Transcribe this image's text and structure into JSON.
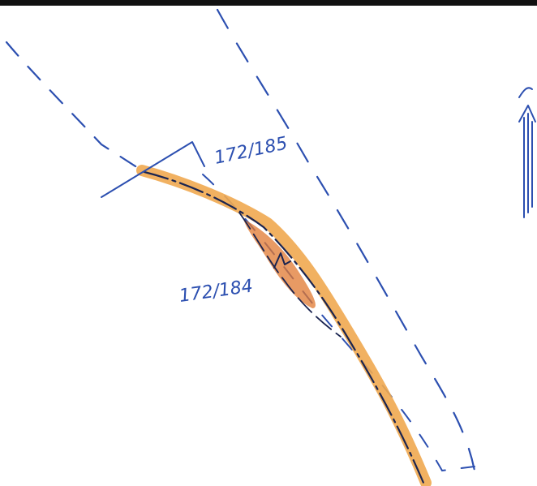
{
  "labels": {
    "parcel_upper": "172/185",
    "parcel_lower": "172/184"
  },
  "icons": {
    "north_arrow": "north-arrow-icon"
  },
  "colors": {
    "ink_blue": "#2c4fb0",
    "ink_dark": "#1a2450",
    "highlight_orange": "#f0a850",
    "highlight_dark_orange": "#e07830",
    "frame_black": "#111111"
  }
}
